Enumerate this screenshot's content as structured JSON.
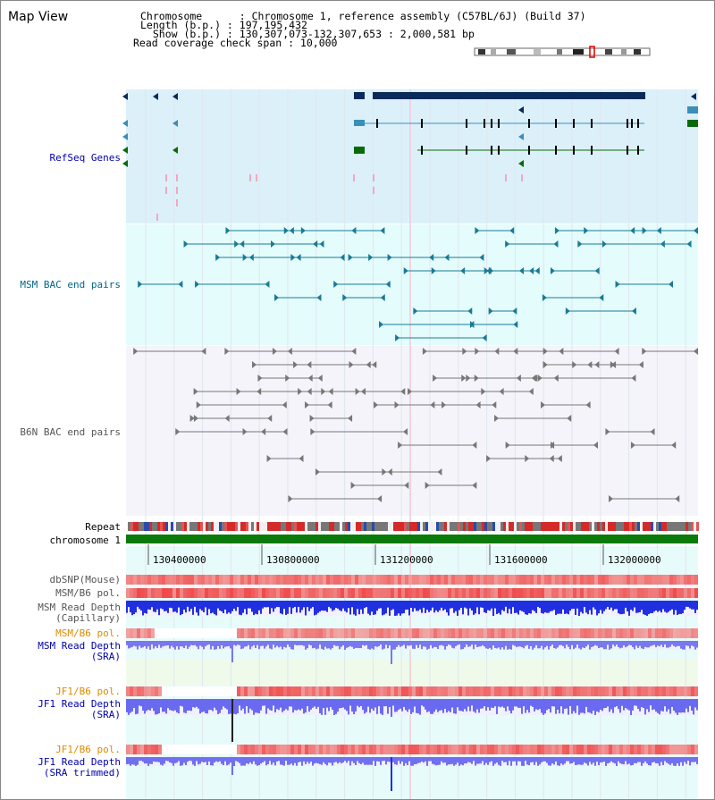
{
  "app": {
    "title": "Map View"
  },
  "info": {
    "line1": "Chromosome      : Chromosome 1, reference assembly (C57BL/6J) (Build 37)",
    "line2": "Length (b.p.) : 197,195,432",
    "line3": "  Show (b.p.) : 130,307,073-132,307,653 : 2,000,581 bp",
    "line4": "Read coverage check span : 10,000"
  },
  "tracks": {
    "refseq": "RefSeq Genes",
    "msm_bac": "MSM BAC end pairs",
    "b6n_bac": "B6N BAC end pairs",
    "repeat": "Repeat",
    "chromosome": "chromosome 1",
    "dbsnp": "dbSNP(Mouse)",
    "msm_pol1": "MSM/B6 pol.",
    "msm_depth_cap_1": "MSM Read Depth",
    "msm_depth_cap_2": "(Capillary)",
    "msm_pol2": "MSM/B6 pol.",
    "msm_depth_sra_1": "MSM Read Depth",
    "msm_depth_sra_2": "(SRA)",
    "jf1_pol1": "JF1/B6 pol.",
    "jf1_depth_sra_1": "JF1 Read Depth",
    "jf1_depth_sra_2": "(SRA)",
    "jf1_pol2": "JF1/B6 pol.",
    "jf1_depth_trim_1": "JF1 Read Depth",
    "jf1_depth_trim_2": "(SRA trimmed)"
  },
  "axis": {
    "ticks": [
      "130400000",
      "130800000",
      "131200000",
      "131600000",
      "132000000"
    ]
  },
  "colors": {
    "refseq_bg": "#dcf0fa",
    "msm_bg": "#e4fcfc",
    "b6n_bg": "#f4f4fa",
    "gene_dark": "#0a2a5a",
    "gene_mid": "#3a8fb8",
    "gene_green": "#0a6a0a",
    "msm_line": "#1a7a96",
    "b6n_line": "#777777",
    "label_blue": "#0000aa",
    "label_teal": "#006688",
    "label_orange": "#e08a00",
    "label_gray": "#555555"
  }
}
